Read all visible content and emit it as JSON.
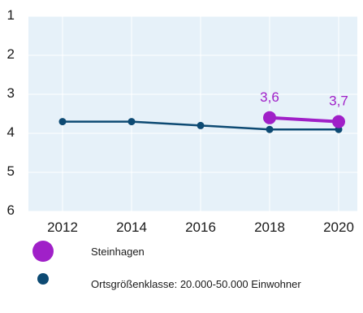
{
  "chart_data": {
    "type": "line",
    "x": [
      "2012",
      "2014",
      "2016",
      "2018",
      "2020"
    ],
    "y_ticks": [
      "1",
      "2",
      "3",
      "4",
      "5",
      "6"
    ],
    "ylim": [
      1,
      6
    ],
    "y_inverted": true,
    "grid": true,
    "background_color": "#e6f1f9",
    "series": [
      {
        "name": "Steinhagen",
        "color": "#a020c8",
        "x": [
          "2018",
          "2020"
        ],
        "values": [
          3.6,
          3.7
        ],
        "data_labels": [
          "3,6",
          "3,7"
        ]
      },
      {
        "name": "Ortsgrößenklasse: 20.000-50.000 Einwohner",
        "color": "#0d4a73",
        "x": [
          "2012",
          "2014",
          "2016",
          "2018",
          "2020"
        ],
        "values": [
          3.7,
          3.7,
          3.8,
          3.9,
          3.9
        ]
      }
    ],
    "legend_position": "bottom-left"
  }
}
